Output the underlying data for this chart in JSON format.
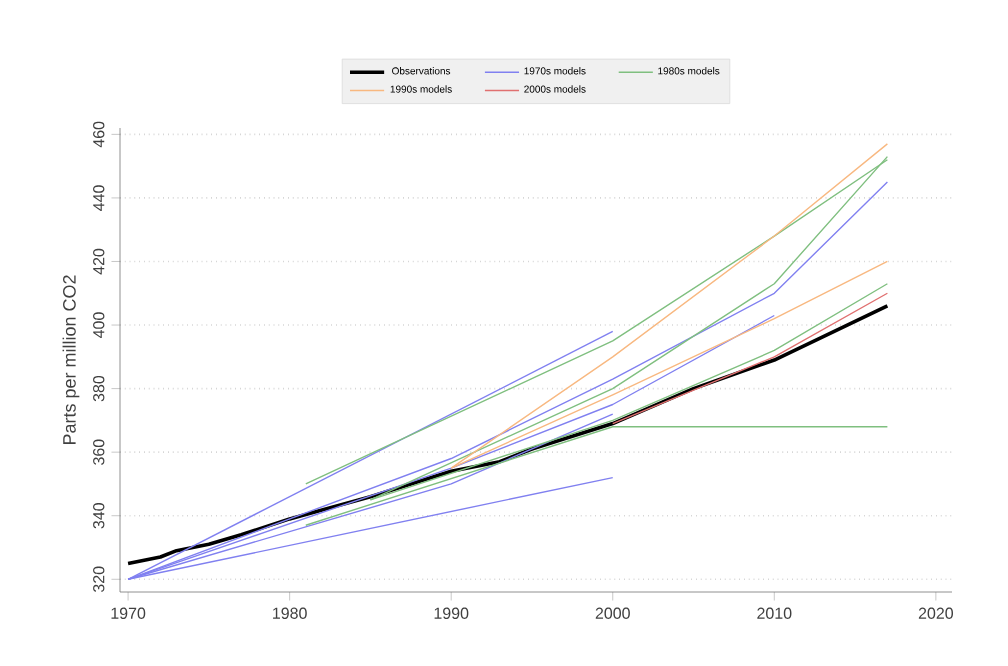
{
  "chart_data": {
    "type": "line",
    "ylabel": "Parts per million CO2",
    "xlim": [
      1969.5,
      2021
    ],
    "ylim": [
      316,
      462
    ],
    "xticks": [
      1970,
      1980,
      1990,
      2000,
      2010,
      2020
    ],
    "yticks": [
      320,
      340,
      360,
      380,
      400,
      420,
      440,
      460
    ],
    "grid": "y",
    "legend": "top",
    "line_style": "solid",
    "marker": "none",
    "series": [
      {
        "name": "Observations",
        "color": "#000000",
        "x": [
          1970,
          1972,
          1973,
          1975,
          1977,
          1980,
          1985,
          1990,
          1993,
          1995,
          2000,
          2005,
          2010,
          2017
        ],
        "values": [
          325,
          327,
          329,
          331,
          334,
          339,
          346,
          354,
          357,
          361,
          369,
          380,
          389,
          406
        ]
      },
      {
        "name": "1970s models",
        "color": "#8080f0",
        "x": [
          1970,
          2000
        ],
        "values": [
          320,
          398
        ]
      },
      {
        "color": "#8080f0",
        "x": [
          1970,
          2000
        ],
        "values": [
          320,
          352
        ]
      },
      {
        "color": "#8080f0",
        "x": [
          1970,
          1990,
          2000,
          2010,
          2017
        ],
        "values": [
          320,
          358,
          383,
          410,
          445
        ]
      },
      {
        "color": "#8080f0",
        "x": [
          1970,
          1990,
          2000,
          2010
        ],
        "values": [
          320,
          355,
          375,
          403
        ]
      },
      {
        "color": "#8080f0",
        "x": [
          1970,
          1990,
          2000
        ],
        "values": [
          320,
          350,
          372
        ]
      },
      {
        "name": "1980s models",
        "color": "#7fbf7f",
        "x": [
          1981,
          2000,
          2010,
          2017
        ],
        "values": [
          350,
          395,
          428,
          452
        ]
      },
      {
        "color": "#7fbf7f",
        "x": [
          1981,
          2000,
          2017
        ],
        "values": [
          337,
          368,
          368
        ]
      },
      {
        "color": "#7fbf7f",
        "x": [
          1985,
          2000,
          2010,
          2017
        ],
        "values": [
          345,
          380,
          413,
          453
        ]
      },
      {
        "color": "#7fbf7f",
        "x": [
          1985,
          2000,
          2010,
          2017
        ],
        "values": [
          345,
          370,
          392,
          413
        ]
      },
      {
        "name": "1990s models",
        "color": "#f8b880",
        "x": [
          1990,
          2000,
          2010,
          2017
        ],
        "values": [
          355,
          390,
          428,
          457
        ]
      },
      {
        "color": "#f8b880",
        "x": [
          1990,
          2000,
          2010,
          2017
        ],
        "values": [
          355,
          378,
          402,
          420
        ]
      },
      {
        "name": "2000s models",
        "color": "#e07070",
        "x": [
          2000,
          2010,
          2017
        ],
        "values": [
          369,
          390,
          410
        ]
      }
    ]
  }
}
